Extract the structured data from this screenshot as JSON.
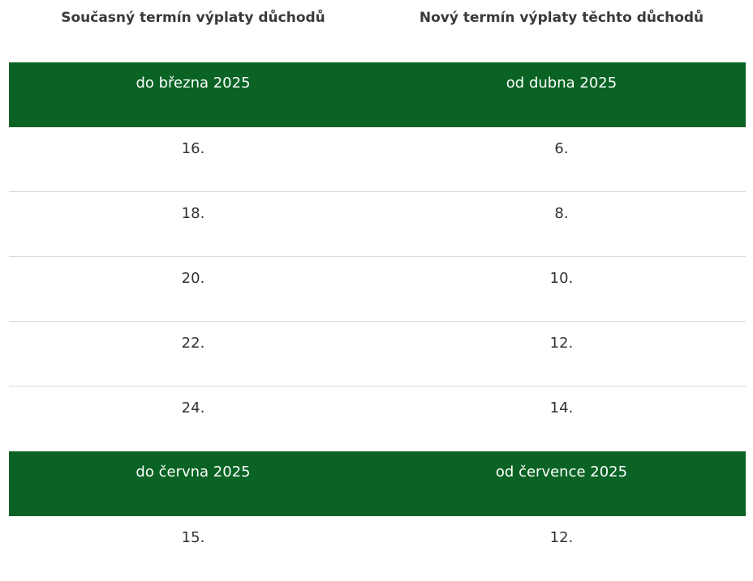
{
  "table": {
    "headers": {
      "current": "Současný termín výplaty důchodů",
      "new": "Nový termín výplaty těchto důchodů"
    },
    "groups": [
      {
        "current_period": "do března 2025",
        "new_period": "od dubna 2025",
        "rows": [
          {
            "current": "16.",
            "new": "6."
          },
          {
            "current": "18.",
            "new": "8."
          },
          {
            "current": "20.",
            "new": "10."
          },
          {
            "current": "22.",
            "new": "12."
          },
          {
            "current": "24.",
            "new": "14."
          }
        ]
      },
      {
        "current_period": "do června 2025",
        "new_period": "od července 2025",
        "rows": [
          {
            "current": "15.",
            "new": "12."
          }
        ]
      }
    ]
  },
  "colors": {
    "group_header_bg": "#0a6324",
    "divider": "#d9d9d9"
  }
}
